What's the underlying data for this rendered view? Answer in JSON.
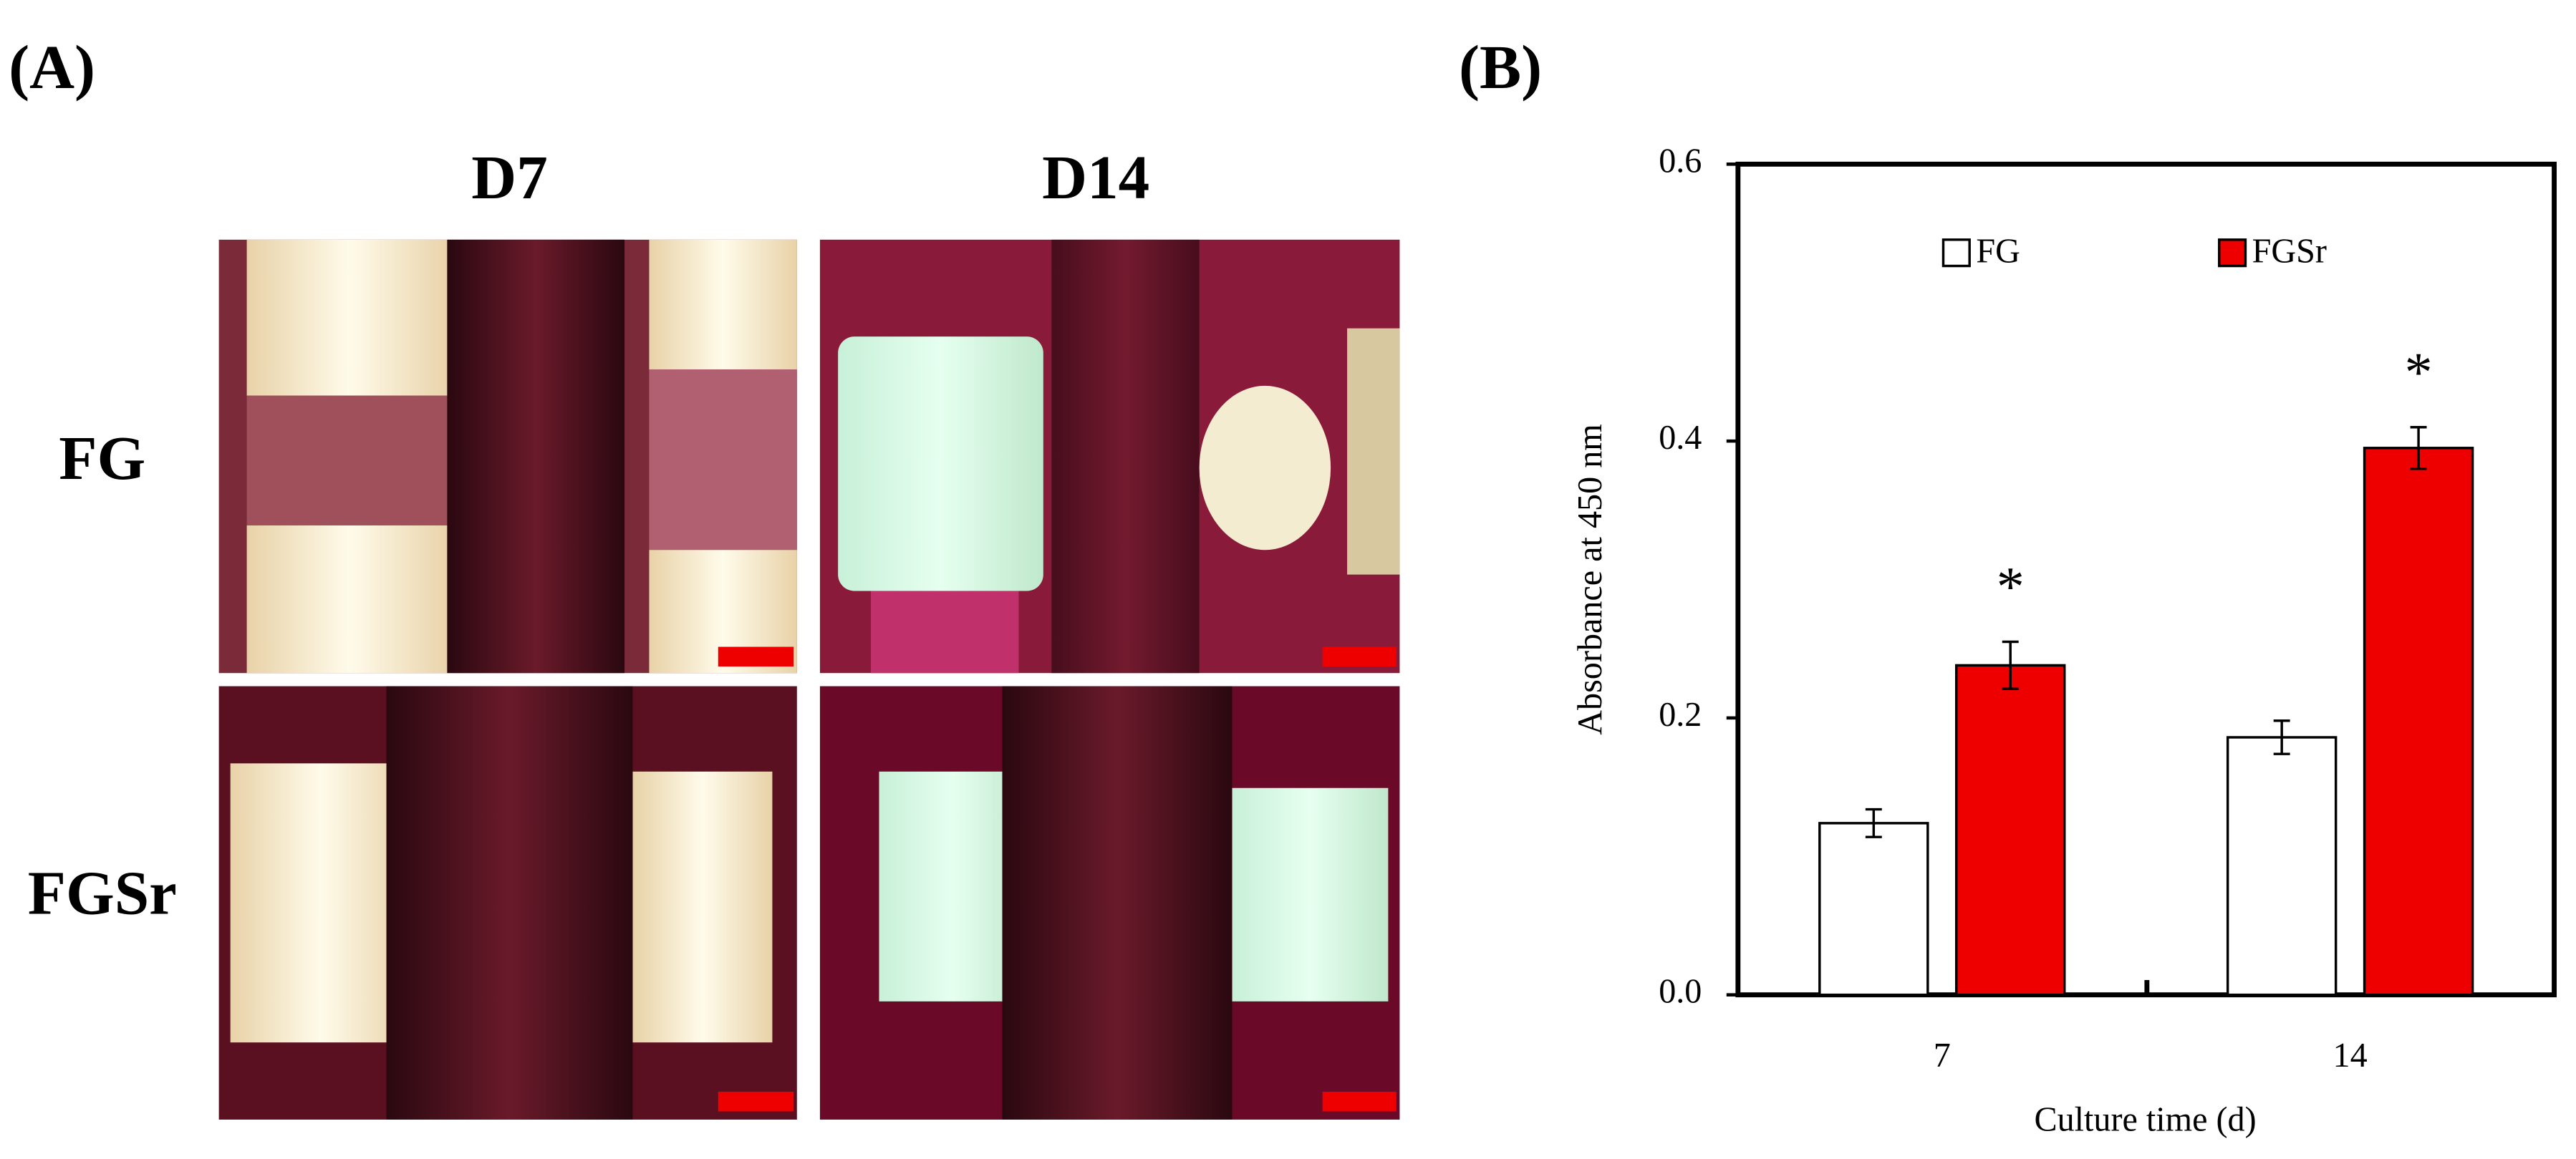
{
  "panel_a": {
    "label": "(A)",
    "columns": [
      "D7",
      "D14"
    ],
    "rows": [
      "FG",
      "FGSr"
    ]
  },
  "chart_data": {
    "type": "bar",
    "panel_label": "(B)",
    "categories": [
      "7",
      "14"
    ],
    "series": [
      {
        "name": "FG",
        "color": "#ffffff",
        "values": [
          0.124,
          0.186
        ],
        "errors": [
          0.01,
          0.012
        ]
      },
      {
        "name": "FGSr",
        "color": "#ee0000",
        "values": [
          0.238,
          0.395
        ],
        "errors": [
          0.017,
          0.015
        ]
      }
    ],
    "annotations": [
      "*",
      "*"
    ],
    "xlabel": "Culture time (d)",
    "ylabel": "Absorbance at 450 nm",
    "ylim": [
      0,
      0.6
    ],
    "yticks": [
      {
        "value": 0,
        "label": "0.0"
      },
      {
        "value": 0.2,
        "label": "0.2"
      },
      {
        "value": 0.4,
        "label": "0.4"
      },
      {
        "value": 0.6,
        "label": "0.6"
      }
    ],
    "legend": "top"
  }
}
